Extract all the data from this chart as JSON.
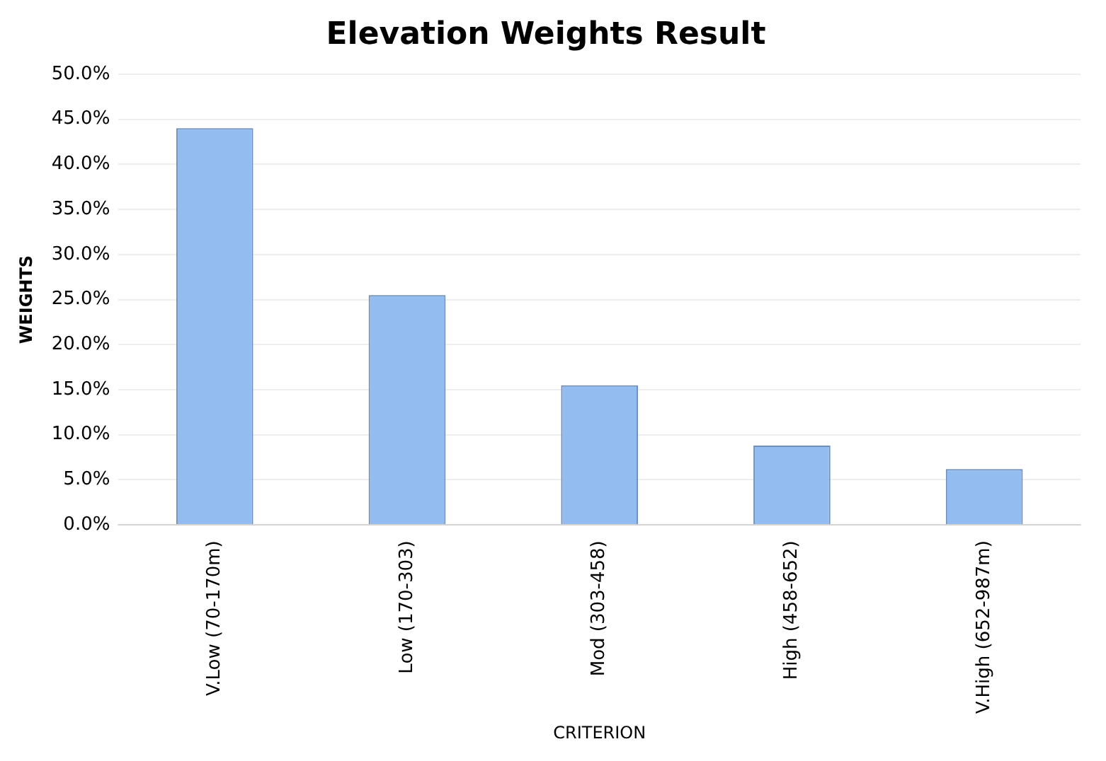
{
  "chart_data": {
    "type": "bar",
    "title": "Elevation Weights Result",
    "xlabel": "CRITERION",
    "ylabel": "WEIGHTS",
    "categories": [
      "V.Low (70-170m)",
      "Low (170-303)",
      "Mod (303-458)",
      "High (458-652)",
      "V.High (652-987m)"
    ],
    "values": [
      44.0,
      25.5,
      15.5,
      8.8,
      6.2
    ],
    "color": "#93bdf0",
    "ylim": [
      0,
      50
    ],
    "yticks": [
      {
        "value": 0,
        "label": "0.0%"
      },
      {
        "value": 5,
        "label": "5.0%"
      },
      {
        "value": 10,
        "label": "10.0%"
      },
      {
        "value": 15,
        "label": "15.0%"
      },
      {
        "value": 20,
        "label": "20.0%"
      },
      {
        "value": 25,
        "label": "25.0%"
      },
      {
        "value": 30,
        "label": "30.0%"
      },
      {
        "value": 35,
        "label": "35.0%"
      },
      {
        "value": 40,
        "label": "40.0%"
      },
      {
        "value": 45,
        "label": "45.0%"
      },
      {
        "value": 50,
        "label": "50.0%"
      }
    ],
    "grid": "y",
    "legend": false
  }
}
